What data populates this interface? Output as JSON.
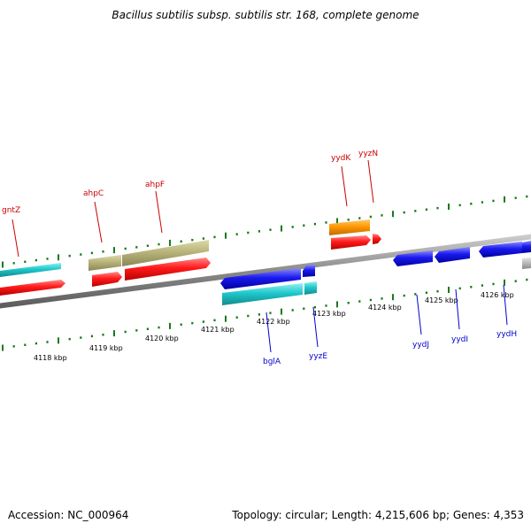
{
  "title": "Bacillus subtilis subsp. subtilis str. 168, complete genome",
  "accession": "Accession: NC_000964",
  "summary": "Topology: circular; Length: 4,215,606 bp; Genes: 4,353",
  "colors": {
    "tick": "#1a7a1a",
    "forward_label": "#cc0000",
    "reverse_label": "#0000cc",
    "backbone": "#888888",
    "red": "#ff1a1a",
    "cyan": "#1ec8cc",
    "olive": "#b8b47a",
    "orange": "#ff9900",
    "blue": "#1a1aee",
    "gray": "#bbbbbb"
  },
  "kbp_labels": [
    "4118 kbp",
    "4119 kbp",
    "4120 kbp",
    "4121 kbp",
    "4122 kbp",
    "4123 kbp",
    "4124 kbp",
    "4125 kbp",
    "4126 kbp"
  ],
  "forward_gene_labels": [
    "gntZ",
    "ahpC",
    "ahpF",
    "yydK",
    "yyzN"
  ],
  "reverse_gene_labels": [
    "bglA",
    "yyzE",
    "yydJ",
    "yydI",
    "yydH"
  ]
}
